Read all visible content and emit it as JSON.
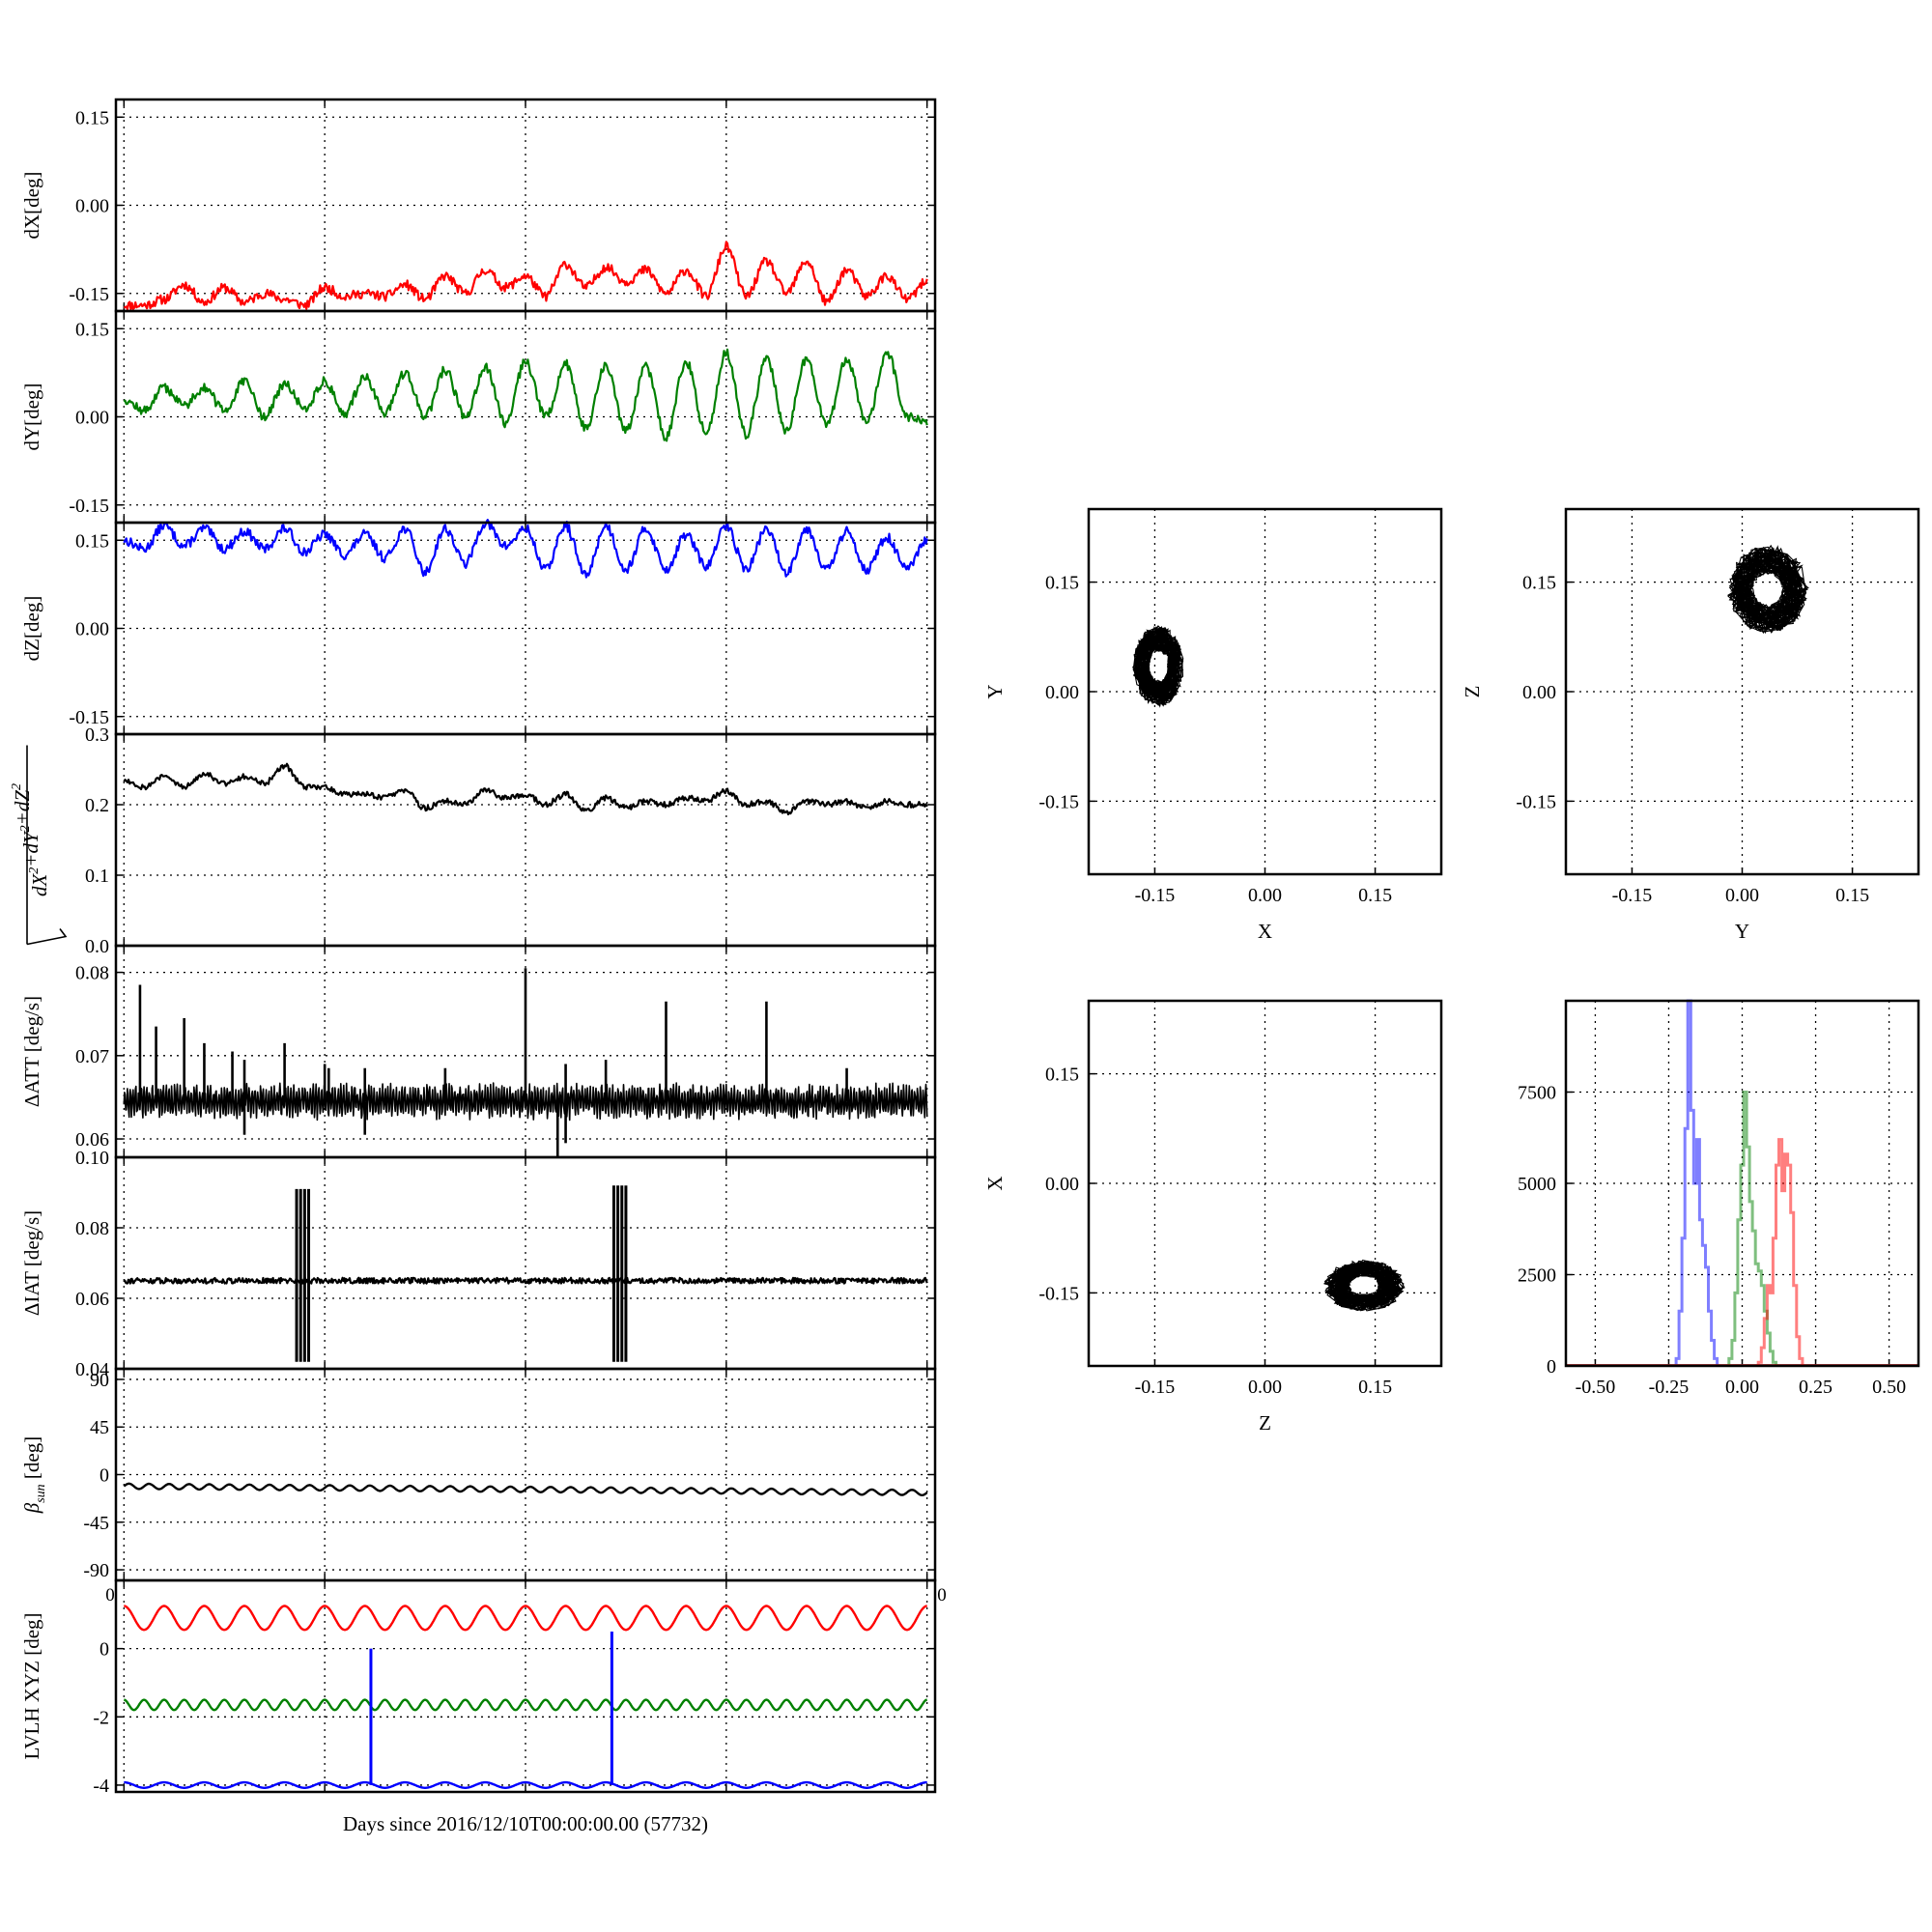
{
  "figure": {
    "xlabel": "Days since 2016/12/10T00:00:00.00 (57732)",
    "tick_fragment_left": "0",
    "tick_fragment_right": "0"
  },
  "colors": {
    "x": "#ff0000",
    "y": "#008000",
    "z": "#0000ff",
    "magnitude": "#000000"
  },
  "chart_data": [
    {
      "id": "dX",
      "type": "line",
      "ylabel": "dX[deg]",
      "yticks": [
        "0.15",
        "0.00",
        "-0.15"
      ],
      "ytick_values": [
        0.15,
        0.0,
        -0.15
      ],
      "ylim": [
        -0.18,
        0.18
      ],
      "color": "#ff0000",
      "grid": true,
      "series": [
        {
          "x": [
            0,
            0.5,
            1,
            1.5,
            2,
            2.5,
            3,
            3.5,
            4,
            4.5,
            5,
            5.5,
            6,
            6.5,
            7,
            7.5,
            8,
            8.5,
            9,
            9.5,
            10,
            10.5,
            11,
            11.5,
            12,
            12.5,
            13,
            13.5,
            14,
            14.5,
            15,
            15.5,
            16,
            16.5,
            17,
            17.5,
            18,
            18.5,
            19,
            19.5,
            20
          ],
          "y": [
            -0.17,
            -0.17,
            -0.16,
            -0.135,
            -0.165,
            -0.14,
            -0.165,
            -0.15,
            -0.16,
            -0.17,
            -0.14,
            -0.155,
            -0.15,
            -0.155,
            -0.135,
            -0.16,
            -0.12,
            -0.15,
            -0.11,
            -0.14,
            -0.12,
            -0.155,
            -0.1,
            -0.14,
            -0.105,
            -0.13,
            -0.11,
            -0.15,
            -0.11,
            -0.155,
            -0.07,
            -0.155,
            -0.095,
            -0.15,
            -0.095,
            -0.165,
            -0.11,
            -0.155,
            -0.12,
            -0.16,
            -0.13
          ]
        }
      ]
    },
    {
      "id": "dY",
      "type": "line",
      "ylabel": "dY[deg]",
      "yticks": [
        "0.15",
        "0.00",
        "-0.15"
      ],
      "ytick_values": [
        0.15,
        0.0,
        -0.15
      ],
      "ylim": [
        -0.18,
        0.18
      ],
      "color": "#008000",
      "grid": true,
      "series": [
        {
          "x": [
            0,
            0.5,
            1,
            1.5,
            2,
            2.5,
            3,
            3.5,
            4,
            4.5,
            5,
            5.5,
            6,
            6.5,
            7,
            7.5,
            8,
            8.5,
            9,
            9.5,
            10,
            10.5,
            11,
            11.5,
            12,
            12.5,
            13,
            13.5,
            14,
            14.5,
            15,
            15.5,
            16,
            16.5,
            17,
            17.5,
            18,
            18.5,
            19,
            19.5,
            20
          ],
          "y": [
            0.03,
            0.01,
            0.05,
            0.02,
            0.05,
            0.01,
            0.06,
            0.0,
            0.055,
            0.015,
            0.06,
            0.005,
            0.07,
            0.005,
            0.075,
            0.0,
            0.08,
            0.0,
            0.085,
            -0.01,
            0.095,
            0.0,
            0.09,
            -0.02,
            0.09,
            -0.025,
            0.085,
            -0.035,
            0.095,
            -0.03,
            0.11,
            -0.03,
            0.1,
            -0.025,
            0.1,
            -0.015,
            0.1,
            -0.01,
            0.11,
            0.0,
            -0.01
          ]
        }
      ]
    },
    {
      "id": "dZ",
      "type": "line",
      "ylabel": "dZ[deg]",
      "yticks": [
        "0.15",
        "0.00",
        "-0.15"
      ],
      "ytick_values": [
        0.15,
        0.0,
        -0.15
      ],
      "ylim": [
        -0.18,
        0.18
      ],
      "color": "#0000ff",
      "grid": true,
      "series": [
        {
          "x": [
            0,
            0.5,
            1,
            1.5,
            2,
            2.5,
            3,
            3.5,
            4,
            4.5,
            5,
            5.5,
            6,
            6.5,
            7,
            7.5,
            8,
            8.5,
            9,
            9.5,
            10,
            10.5,
            11,
            11.5,
            12,
            12.5,
            13,
            13.5,
            14,
            14.5,
            15,
            15.5,
            16,
            16.5,
            17,
            17.5,
            18,
            18.5,
            19,
            19.5,
            20
          ],
          "y": [
            0.15,
            0.135,
            0.175,
            0.14,
            0.17,
            0.135,
            0.165,
            0.135,
            0.17,
            0.13,
            0.16,
            0.125,
            0.16,
            0.12,
            0.17,
            0.095,
            0.17,
            0.11,
            0.18,
            0.14,
            0.17,
            0.1,
            0.175,
            0.09,
            0.175,
            0.1,
            0.17,
            0.1,
            0.16,
            0.105,
            0.175,
            0.1,
            0.17,
            0.095,
            0.17,
            0.1,
            0.165,
            0.1,
            0.155,
            0.1,
            0.15
          ]
        }
      ]
    },
    {
      "id": "magnitude",
      "type": "line",
      "ylabel_parts": [
        "dX",
        "2",
        "+dY",
        "2",
        "+dZ",
        "2"
      ],
      "yticks": [
        "0.3",
        "0.2",
        "0.1",
        "0.0"
      ],
      "ytick_values": [
        0.3,
        0.2,
        0.1,
        0.0
      ],
      "ylim": [
        0.0,
        0.3
      ],
      "color": "#000000",
      "grid": true,
      "series": [
        {
          "x": [
            0,
            0.5,
            1,
            1.5,
            2,
            2.5,
            3,
            3.5,
            4,
            4.5,
            5,
            5.5,
            6,
            6.5,
            7,
            7.5,
            8,
            8.5,
            9,
            9.5,
            10,
            10.5,
            11,
            11.5,
            12,
            12.5,
            13,
            13.5,
            14,
            14.5,
            15,
            15.5,
            16,
            16.5,
            17,
            17.5,
            18,
            18.5,
            19,
            19.5,
            20
          ],
          "y": [
            0.235,
            0.225,
            0.24,
            0.225,
            0.245,
            0.23,
            0.24,
            0.23,
            0.255,
            0.225,
            0.225,
            0.215,
            0.215,
            0.21,
            0.22,
            0.195,
            0.205,
            0.2,
            0.22,
            0.21,
            0.215,
            0.2,
            0.215,
            0.19,
            0.21,
            0.195,
            0.205,
            0.2,
            0.21,
            0.205,
            0.22,
            0.2,
            0.205,
            0.19,
            0.205,
            0.2,
            0.205,
            0.195,
            0.205,
            0.2,
            0.2
          ]
        }
      ]
    },
    {
      "id": "dATT",
      "type": "line",
      "ylabel": "ΔATT [deg/s]",
      "yticks": [
        "0.08",
        "0.07",
        "0.06"
      ],
      "ytick_values": [
        0.08,
        0.07,
        0.06
      ],
      "ylim": [
        0.0578,
        0.0832
      ],
      "color": "#000000",
      "grid": true,
      "baseline": 0.0645,
      "band": 0.0015,
      "spikes": [
        {
          "x": 0.4,
          "y": 0.0785
        },
        {
          "x": 0.8,
          "y": 0.0735
        },
        {
          "x": 1.5,
          "y": 0.0745
        },
        {
          "x": 2.0,
          "y": 0.0715
        },
        {
          "x": 2.7,
          "y": 0.0705
        },
        {
          "x": 3.0,
          "y": 0.0695
        },
        {
          "x": 4.0,
          "y": 0.0715
        },
        {
          "x": 5.0,
          "y": 0.069
        },
        {
          "x": 5.1,
          "y": 0.0685
        },
        {
          "x": 6.0,
          "y": 0.0685
        },
        {
          "x": 8.0,
          "y": 0.0685
        },
        {
          "x": 10.0,
          "y": 0.0805
        },
        {
          "x": 11.0,
          "y": 0.069
        },
        {
          "x": 12.0,
          "y": 0.0695
        },
        {
          "x": 13.5,
          "y": 0.0765
        },
        {
          "x": 16.0,
          "y": 0.0765
        },
        {
          "x": 18.0,
          "y": 0.0685
        },
        {
          "x": 11.0,
          "y": 0.0595
        },
        {
          "x": 10.8,
          "y": 0.0578
        },
        {
          "x": 3.0,
          "y": 0.0605
        },
        {
          "x": 6.0,
          "y": 0.0605
        }
      ]
    },
    {
      "id": "dIAT",
      "type": "line",
      "ylabel": "ΔIAT [deg/s]",
      "yticks": [
        "0.10",
        "0.08",
        "0.06",
        "0.04"
      ],
      "ytick_values": [
        0.1,
        0.08,
        0.06,
        0.04
      ],
      "ylim": [
        0.04,
        0.1
      ],
      "color": "#000000",
      "grid": true,
      "baseline": 0.065,
      "band": 0.0008,
      "bursts": [
        {
          "x_start": 4.3,
          "x_end": 4.6,
          "y_min": 0.042,
          "y_max": 0.091
        },
        {
          "x_start": 12.2,
          "x_end": 12.5,
          "y_min": 0.042,
          "y_max": 0.092
        }
      ]
    },
    {
      "id": "beta_sun",
      "type": "line",
      "ylabel": "β",
      "ylabel_sub": "sun",
      "ylabel_unit": " [deg]",
      "yticks": [
        "90",
        "45",
        "0",
        "-45",
        "-90"
      ],
      "ytick_values": [
        90,
        45,
        0,
        -45,
        -90
      ],
      "ylim": [
        -100,
        100
      ],
      "color": "#000000",
      "grid": true,
      "mean_start": -11,
      "mean_end": -17,
      "ripple": 2.5,
      "cycles": 40
    },
    {
      "id": "lvlh",
      "type": "line",
      "ylabel": "LVLH XYZ [deg]",
      "yticks": [
        "0",
        "-2",
        "-4"
      ],
      "ytick_values": [
        0,
        -2,
        -4
      ],
      "ylim": [
        -4.2,
        2.0
      ],
      "grid": true,
      "series": [
        {
          "color": "#ff0000",
          "mean": 0.9,
          "amplitude": 0.35,
          "cycles": 20
        },
        {
          "color": "#008000",
          "mean": -1.65,
          "amplitude": 0.15,
          "cycles": 40
        },
        {
          "color": "#0000ff",
          "mean": -4.0,
          "amplitude": 0.08,
          "cycles": 20,
          "spikes": [
            {
              "x": 6.15,
              "to": 0.0
            },
            {
              "x": 12.15,
              "to": 0.5
            }
          ]
        }
      ]
    },
    {
      "id": "scatter_xy",
      "type": "scatter",
      "xlabel": "X",
      "ylabel": "Y",
      "xticks": [
        "-0.15",
        "0.00",
        "0.15"
      ],
      "yticks": [
        "0.15",
        "0.00",
        "-0.15"
      ],
      "tick_values": [
        -0.15,
        0.0,
        0.15
      ],
      "xlim": [
        -0.24,
        0.24
      ],
      "ylim": [
        -0.25,
        0.25
      ],
      "grid": true,
      "cluster": {
        "cx": -0.145,
        "cy": 0.035,
        "rx": 0.035,
        "ry": 0.055
      }
    },
    {
      "id": "scatter_yz",
      "type": "scatter",
      "xlabel": "Y",
      "ylabel": "Z",
      "xticks": [
        "-0.15",
        "0.00",
        "0.15"
      ],
      "yticks": [
        "0.15",
        "0.00",
        "-0.15"
      ],
      "tick_values": [
        -0.15,
        0.0,
        0.15
      ],
      "xlim": [
        -0.24,
        0.24
      ],
      "ylim": [
        -0.25,
        0.25
      ],
      "grid": true,
      "cluster": {
        "cx": 0.035,
        "cy": 0.14,
        "rx": 0.055,
        "ry": 0.06
      }
    },
    {
      "id": "scatter_zx",
      "type": "scatter",
      "xlabel": "Z",
      "ylabel": "X",
      "xticks": [
        "-0.15",
        "0.00",
        "0.15"
      ],
      "yticks": [
        "0.15",
        "0.00",
        "-0.15"
      ],
      "tick_values": [
        -0.15,
        0.0,
        0.15
      ],
      "xlim": [
        -0.24,
        0.24
      ],
      "ylim": [
        -0.25,
        0.25
      ],
      "grid": true,
      "cluster": {
        "cx": 0.135,
        "cy": -0.14,
        "rx": 0.055,
        "ry": 0.035
      }
    },
    {
      "id": "histogram",
      "type": "bar",
      "xticks": [
        "-0.50",
        "-0.25",
        "0.00",
        "0.25",
        "0.50"
      ],
      "xtick_values": [
        -0.5,
        -0.25,
        0.0,
        0.25,
        0.5
      ],
      "yticks": [
        "7500",
        "5000",
        "2500",
        "0"
      ],
      "ytick_values": [
        7500,
        5000,
        2500,
        0
      ],
      "xlim": [
        -0.6,
        0.6
      ],
      "ylim": [
        0,
        10000
      ],
      "grid": true,
      "series": [
        {
          "color": "#0000ff",
          "bins_x": [
            -0.22,
            -0.21,
            -0.2,
            -0.19,
            -0.18,
            -0.17,
            -0.16,
            -0.15,
            -0.14,
            -0.13,
            -0.12,
            -0.11,
            -0.1,
            -0.09
          ],
          "bins_y": [
            200,
            1500,
            3500,
            6500,
            10000,
            7000,
            5000,
            6200,
            4000,
            3300,
            2700,
            1500,
            700,
            200
          ]
        },
        {
          "color": "#008000",
          "bins_x": [
            -0.04,
            -0.03,
            -0.02,
            -0.01,
            0.0,
            0.01,
            0.02,
            0.03,
            0.04,
            0.05,
            0.06,
            0.07,
            0.08,
            0.09,
            0.1,
            0.11
          ],
          "bins_y": [
            200,
            700,
            2000,
            4000,
            5500,
            7500,
            6000,
            4500,
            3700,
            2800,
            2600,
            2200,
            1500,
            900,
            400,
            100
          ]
        },
        {
          "color": "#ff0000",
          "bins_x": [
            0.06,
            0.07,
            0.08,
            0.09,
            0.1,
            0.11,
            0.12,
            0.13,
            0.14,
            0.15,
            0.16,
            0.17,
            0.18,
            0.19,
            0.2
          ],
          "bins_y": [
            100,
            500,
            1300,
            2200,
            2000,
            3500,
            5500,
            6200,
            4800,
            5800,
            5500,
            4200,
            2200,
            800,
            200
          ]
        }
      ]
    }
  ]
}
